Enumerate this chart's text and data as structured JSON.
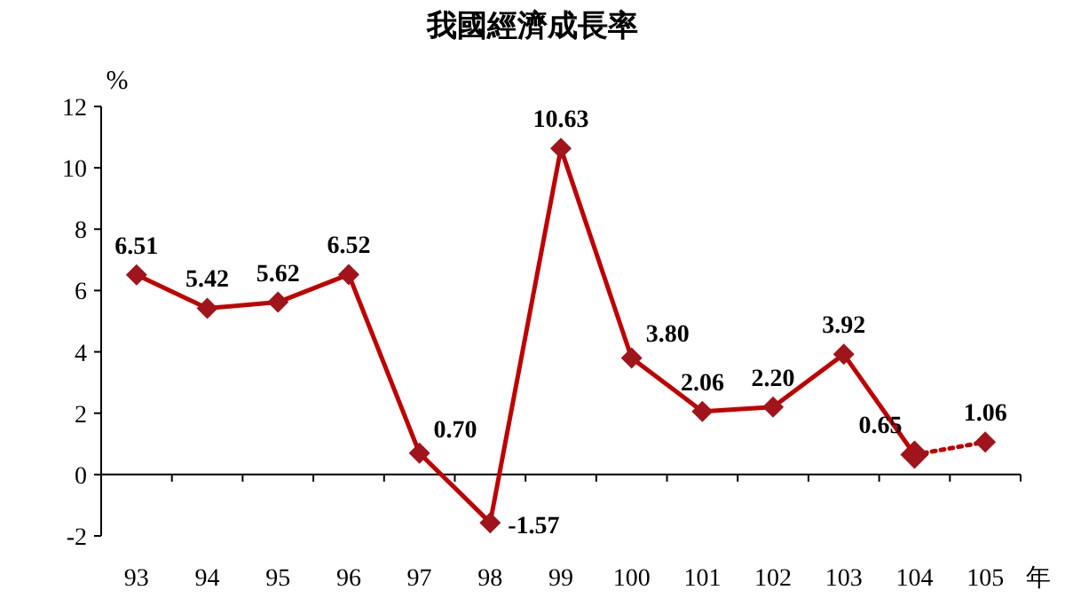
{
  "chart_data": {
    "type": "line",
    "title": "我國經濟成長率",
    "ylabel": "%",
    "xlabel": "年",
    "categories": [
      "93",
      "94",
      "95",
      "96",
      "97",
      "98",
      "99",
      "100",
      "101",
      "102",
      "103",
      "104",
      "105"
    ],
    "series": [
      {
        "color": "#c00000",
        "line_style": "solid",
        "values": [
          6.51,
          5.42,
          5.62,
          6.52,
          0.7,
          -1.57,
          10.63,
          3.8,
          2.06,
          2.2,
          3.92,
          0.65,
          null
        ],
        "value_labels": [
          "6.51",
          "5.42",
          "5.62",
          "6.52",
          "0.70",
          "-1.57",
          "10.63",
          "3.80",
          "2.06",
          "2.20",
          "3.92",
          "0.65",
          null
        ]
      },
      {
        "color": "#c00000",
        "line_style": "dotted",
        "values": [
          null,
          null,
          null,
          null,
          null,
          null,
          null,
          null,
          null,
          null,
          null,
          0.65,
          1.06
        ],
        "value_labels": [
          null,
          null,
          null,
          null,
          null,
          null,
          null,
          null,
          null,
          null,
          null,
          null,
          "1.06"
        ]
      }
    ],
    "marker": "diamond",
    "ylim": [
      -2,
      12
    ],
    "yticks": [
      -2,
      0,
      2,
      4,
      6,
      8,
      10,
      12
    ]
  }
}
